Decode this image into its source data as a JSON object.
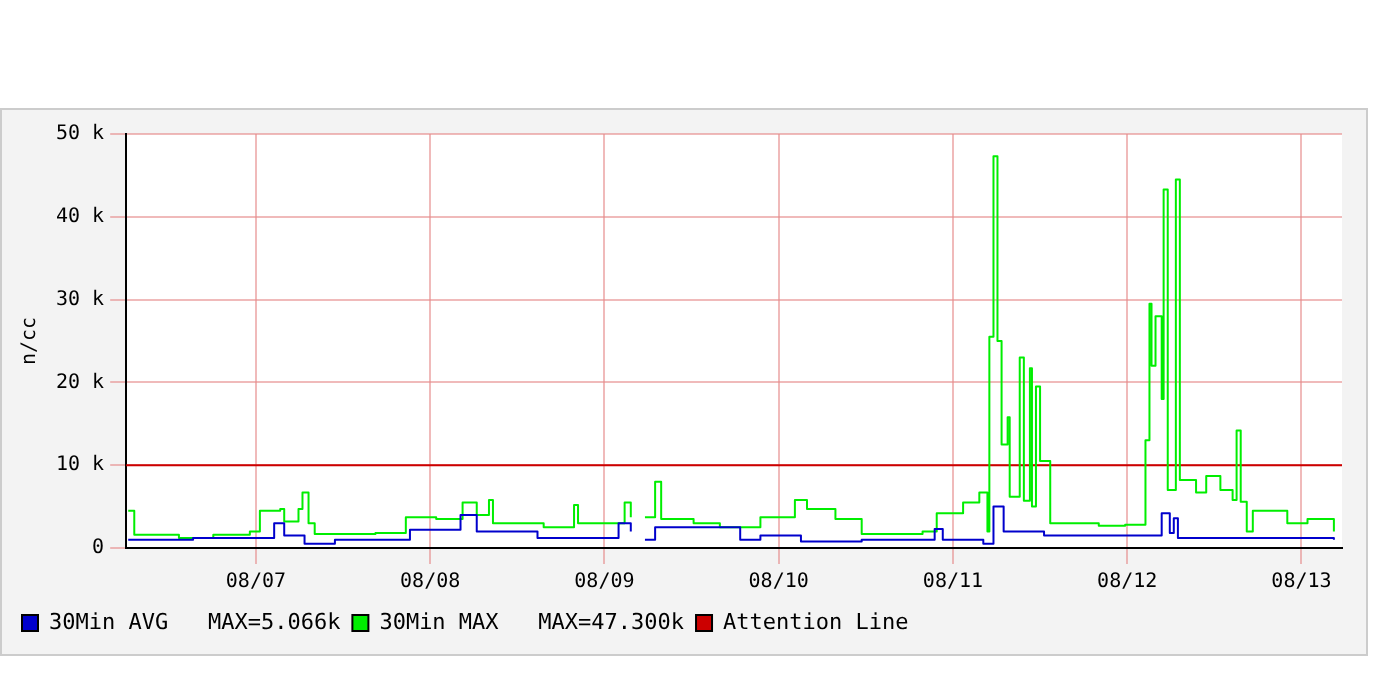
{
  "chart_data": {
    "type": "step",
    "ylabel": "n/cc",
    "xlim": [
      "--08-06T18:08",
      "--08-13T17:35"
    ],
    "xticks": [
      {
        "value": "--08-07T12:00",
        "label": "08/07"
      },
      {
        "value": "--08-08T12:00",
        "label": "08/08"
      },
      {
        "value": "--08-09T12:00",
        "label": "08/09"
      },
      {
        "value": "--08-10T12:00",
        "label": "08/10"
      },
      {
        "value": "--08-11T12:00",
        "label": "08/11"
      },
      {
        "value": "--08-12T12:00",
        "label": "08/12"
      },
      {
        "value": "--08-13T12:00",
        "label": "08/13"
      }
    ],
    "ylim": [
      0,
      50
    ],
    "yticks": [
      0,
      {
        "value": 10,
        "label": "10 k"
      },
      {
        "value": 20,
        "label": "20 k"
      },
      {
        "value": 30,
        "label": "30 k"
      },
      {
        "value": 40,
        "label": "40 k"
      },
      {
        "value": 50,
        "label": "50 k"
      }
    ],
    "grid": true,
    "legend": "bottom",
    "series": [
      {
        "name": "30Min AVG   MAX=5.066k",
        "color": "#0000cc",
        "x": [
          "--08-06T18:25",
          "--08-07T03:21",
          "--08-07T13:07",
          "--08-07T14:31",
          "--08-07T15:54",
          "--08-07T18:42",
          "--08-07T22:53",
          "--08-08T08:39",
          "--08-08T09:13",
          "--08-08T16:11",
          "--08-08T18:25",
          "--08-09T02:47",
          "--08-09T13:57",
          "--08-09T15:38",
          "--08-09T16:11",
          "--08-09T17:35",
          "--08-09T18:59",
          "--08-10T06:42",
          "--08-10T09:29",
          "--08-10T15:04",
          "--08-10T23:26",
          "--08-11T09:29",
          "--08-11T10:36",
          "--08-11T16:11",
          "--08-11T17:35",
          "--08-11T18:59",
          "--08-12T00:33",
          "--08-12T16:45",
          "--08-12T17:52",
          "--08-12T18:25",
          "--08-12T18:59",
          "--08-13T16:28"
        ],
        "values": [
          1.0,
          1.2,
          1.2,
          3.0,
          1.5,
          0.5,
          1.0,
          1.0,
          2.2,
          4.0,
          2.0,
          1.2,
          3.0,
          2.0,
          null,
          1.0,
          2.5,
          1.0,
          1.5,
          0.8,
          1.0,
          2.3,
          1.0,
          0.5,
          5.0,
          2.0,
          1.5,
          4.2,
          1.8,
          3.6,
          1.2,
          1.0
        ]
      },
      {
        "name": "30Min MAX   MAX=47.300k",
        "color": "#00ee00",
        "x": [
          "--08-06T18:25",
          "--08-06T19:15",
          "--08-07T01:24",
          "--08-07T06:08",
          "--08-07T11:10",
          "--08-07T12:33",
          "--08-07T15:21",
          "--08-07T15:54",
          "--08-07T17:52",
          "--08-07T18:25",
          "--08-07T19:15",
          "--08-07T20:06",
          "--08-08T04:28",
          "--08-08T08:39",
          "--08-08T12:50",
          "--08-08T16:28",
          "--08-08T18:25",
          "--08-08T20:06",
          "--08-08T20:39",
          "--08-09T03:38",
          "--08-09T07:49",
          "--08-09T08:22",
          "--08-09T14:47",
          "--08-09T15:38",
          "--08-09T16:11",
          "--08-09T17:35",
          "--08-09T18:59",
          "--08-09T19:49",
          "--08-10T00:17",
          "--08-10T03:54",
          "--08-10T09:29",
          "--08-10T14:14",
          "--08-10T15:54",
          "--08-10T19:49",
          "--08-10T23:26",
          "--08-11T07:49",
          "--08-11T09:46",
          "--08-11T13:24",
          "--08-11T15:38",
          "--08-11T16:45",
          "--08-11T17:01",
          "--08-11T17:35",
          "--08-11T18:08",
          "--08-11T18:42",
          "--08-11T19:32",
          "--08-11T19:49",
          "--08-11T21:12",
          "--08-11T21:46",
          "--08-11T22:36",
          "--08-11T22:53",
          "--08-11T23:26",
          "--08-12T00:00",
          "--08-12T01:24",
          "--08-12T08:05",
          "--08-12T11:43",
          "--08-12T14:31",
          "--08-12T15:04",
          "--08-12T15:21",
          "--08-12T15:54",
          "--08-12T16:45",
          "--08-12T17:01",
          "--08-12T17:35",
          "--08-12T18:42",
          "--08-12T19:15",
          "--08-12T21:29",
          "--08-12T22:53",
          "--08-13T00:50",
          "--08-13T02:31",
          "--08-13T03:04",
          "--08-13T03:38",
          "--08-13T04:28",
          "--08-13T05:18",
          "--08-13T10:03",
          "--08-13T12:50",
          "--08-13T16:28"
        ],
        "values": [
          4.5,
          1.6,
          1.2,
          1.6,
          2.0,
          4.5,
          4.7,
          3.2,
          4.7,
          6.7,
          3.0,
          1.7,
          1.8,
          3.7,
          3.5,
          5.5,
          4.0,
          5.8,
          3.0,
          2.5,
          5.2,
          3.0,
          5.5,
          3.7,
          null,
          3.7,
          8.0,
          3.5,
          3.0,
          2.5,
          3.7,
          5.8,
          4.7,
          3.5,
          1.7,
          2.0,
          4.2,
          5.5,
          6.7,
          2.0,
          25.5,
          47.3,
          25.0,
          12.5,
          15.8,
          6.2,
          23.0,
          5.7,
          21.7,
          5.0,
          19.5,
          10.5,
          3.0,
          2.7,
          2.8,
          13.0,
          29.5,
          22.0,
          28.0,
          18.0,
          43.3,
          7.0,
          44.5,
          8.2,
          6.7,
          8.7,
          7.0,
          5.8,
          14.2,
          5.6,
          2.0,
          4.5,
          3.0,
          3.5,
          2.0
        ]
      }
    ],
    "ref_lines": [
      {
        "axis": "y",
        "value": 10,
        "label": "Attention Line",
        "color": "#cc0000"
      }
    ]
  }
}
